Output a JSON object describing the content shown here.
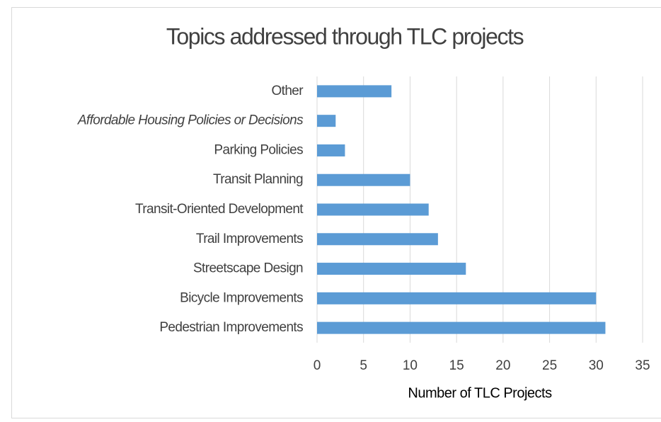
{
  "chart_data": {
    "type": "barh",
    "title": "Topics addressed through TLC projects",
    "x_label": "Number of TLC Projects",
    "categories": [
      "Other",
      "Affordable Housing Policies or Decisions",
      "Parking Policies",
      "Transit Planning",
      "Transit-Oriented Development",
      "Trail Improvements",
      "Streetscape Design",
      "Bicycle Improvements",
      "Pedestrian Improvements"
    ],
    "values": [
      8,
      2,
      3,
      10,
      12,
      13,
      16,
      30,
      31
    ],
    "color": "#5b9bd5",
    "xlim": [
      0,
      35
    ],
    "xticks": [
      0,
      5,
      10,
      15,
      20,
      25,
      30,
      35
    ],
    "grid": true
  }
}
